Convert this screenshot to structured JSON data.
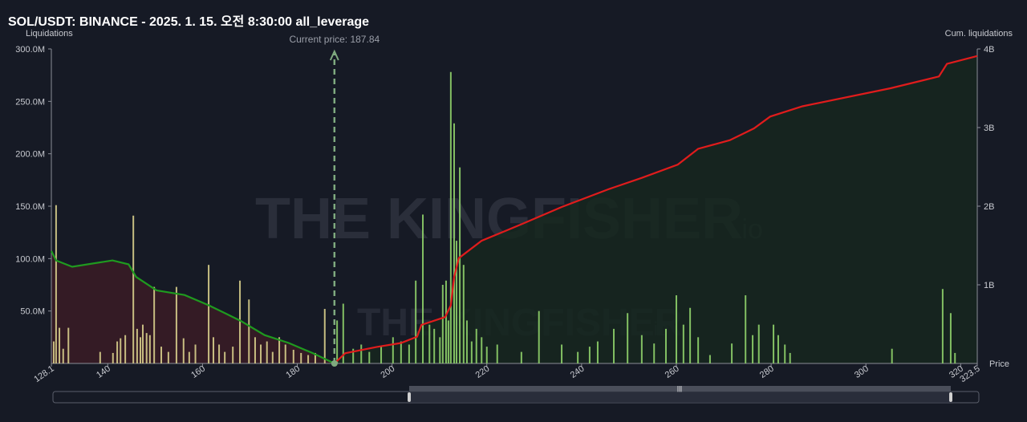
{
  "chart_data": {
    "type": "bar",
    "title": "SOL/USDT: BINANCE - 2025. 1. 15. 오전 8:30:00 all_leverage",
    "y_label": "Liquidations",
    "y2_label": "Cum. liquidations",
    "x_label": "Price",
    "current_price": 187.84,
    "current_price_label": "Current price: 187.84",
    "watermark": "THE KINGFISHER",
    "watermark_suffix": ".io",
    "xlim": [
      128.1,
      323.5
    ],
    "xticks": [
      128.1,
      140,
      160,
      180,
      200,
      220,
      240,
      260,
      280,
      300,
      320,
      323.5
    ],
    "ylim": [
      0,
      300000000
    ],
    "yticks": [
      {
        "value": 50000000,
        "label": "50.0M"
      },
      {
        "value": 100000000,
        "label": "100.0M"
      },
      {
        "value": 150000000,
        "label": "150.0M"
      },
      {
        "value": 200000000,
        "label": "200.0M"
      },
      {
        "value": 250000000,
        "label": "250.0M"
      },
      {
        "value": 300000000,
        "label": "300.0M"
      }
    ],
    "y2lim": [
      0,
      4000000000
    ],
    "y2ticks": [
      {
        "value": 1000000000,
        "label": "1B"
      },
      {
        "value": 2000000000,
        "label": "2B"
      },
      {
        "value": 3000000000,
        "label": "3B"
      },
      {
        "value": 4000000000,
        "label": "4B"
      }
    ],
    "series": [
      {
        "type": "bar",
        "color": "#d8cf8c",
        "x": [
          128.6,
          129.1,
          129.8,
          130.6,
          131.7,
          138.4,
          141.1,
          142.0,
          142.7,
          143.7,
          145.4,
          146.2,
          146.9,
          147.4,
          148.2,
          148.9,
          149.8,
          151.3,
          152.8,
          154.5,
          156.0,
          157.2,
          158.5,
          161.3,
          162.3,
          163.5,
          164.7,
          166.4,
          167.9,
          169.8,
          171.1,
          172.3,
          173.6,
          174.8,
          176.2,
          177.5,
          179.2,
          180.8,
          182.3,
          183.8,
          185.8
        ],
        "values": [
          21000000,
          151000000,
          34000000,
          14000000,
          34000000,
          11000000,
          10000000,
          21000000,
          24000000,
          27000000,
          141000000,
          33000000,
          25000000,
          37000000,
          29000000,
          27000000,
          73000000,
          16000000,
          11000000,
          73000000,
          24000000,
          11000000,
          18000000,
          94000000,
          25000000,
          18000000,
          11000000,
          16000000,
          79000000,
          61000000,
          25000000,
          18000000,
          21000000,
          11000000,
          25000000,
          18000000,
          13000000,
          10000000,
          8000000,
          10000000,
          52000000
        ]
      },
      {
        "type": "bar",
        "color": "#8fd16a",
        "x": [
          188.4,
          189.7,
          191.8,
          193.5,
          195.2,
          197.7,
          200.2,
          201.9,
          203.6,
          205.0,
          206.5,
          207.9,
          208.9,
          210.1,
          210.7,
          211.4,
          211.9,
          212.4,
          213.1,
          213.6,
          214.3,
          215.1,
          215.8,
          216.8,
          217.8,
          218.9,
          220.0,
          222.2,
          227.3,
          231.0,
          235.8,
          239.2,
          241.7,
          243.4,
          246.8,
          249.7,
          252.7,
          255.3,
          257.8,
          260.0,
          261.5,
          262.9,
          264.6,
          267.1,
          271.7,
          274.6,
          276.1,
          277.4,
          280.5,
          281.5,
          282.9,
          284.0,
          305.5,
          316.2,
          317.9,
          318.8
        ],
        "values": [
          41000000,
          57000000,
          14000000,
          18000000,
          11000000,
          16000000,
          25000000,
          21000000,
          18000000,
          79000000,
          142000000,
          37000000,
          33000000,
          25000000,
          75000000,
          79000000,
          41000000,
          278000000,
          229000000,
          117000000,
          187000000,
          94000000,
          41000000,
          21000000,
          33000000,
          25000000,
          16000000,
          18000000,
          11000000,
          50000000,
          18000000,
          11000000,
          16000000,
          21000000,
          33000000,
          48000000,
          27000000,
          19000000,
          33000000,
          65000000,
          37000000,
          53000000,
          25000000,
          8000000,
          19000000,
          65000000,
          27000000,
          37000000,
          37000000,
          27000000,
          18000000,
          10000000,
          14000000,
          71000000,
          48000000,
          10000000
        ]
      },
      {
        "type": "line",
        "axis": "y2",
        "color": "#1f9a1f",
        "fill": "#3a1c26",
        "x": [
          128.1,
          129.1,
          132.5,
          141.0,
          144.4,
          146.0,
          150.3,
          156.2,
          161.3,
          164.7,
          168.1,
          173.1,
          178.2,
          183.3,
          187.84
        ],
        "values": [
          1430000000,
          1310000000,
          1230000000,
          1310000000,
          1260000000,
          1100000000,
          930000000,
          870000000,
          740000000,
          640000000,
          540000000,
          360000000,
          260000000,
          130000000,
          0
        ]
      },
      {
        "type": "line",
        "axis": "y2",
        "color": "#e01c1c",
        "fill": "#16271f",
        "x": [
          187.84,
          190.1,
          196.8,
          201.9,
          205.3,
          206.2,
          211.2,
          212.4,
          213.1,
          214.1,
          218.9,
          227.3,
          235.8,
          245.9,
          252.7,
          260.3,
          264.6,
          271.3,
          276.4,
          279.8,
          286.6,
          305.2,
          315.4,
          317.1,
          323.5
        ],
        "values": [
          0,
          130000000,
          210000000,
          260000000,
          340000000,
          490000000,
          590000000,
          740000000,
          1100000000,
          1340000000,
          1560000000,
          1770000000,
          1990000000,
          2220000000,
          2360000000,
          2530000000,
          2730000000,
          2840000000,
          2990000000,
          3140000000,
          3270000000,
          3500000000,
          3650000000,
          3810000000,
          3910000000
        ]
      }
    ]
  }
}
